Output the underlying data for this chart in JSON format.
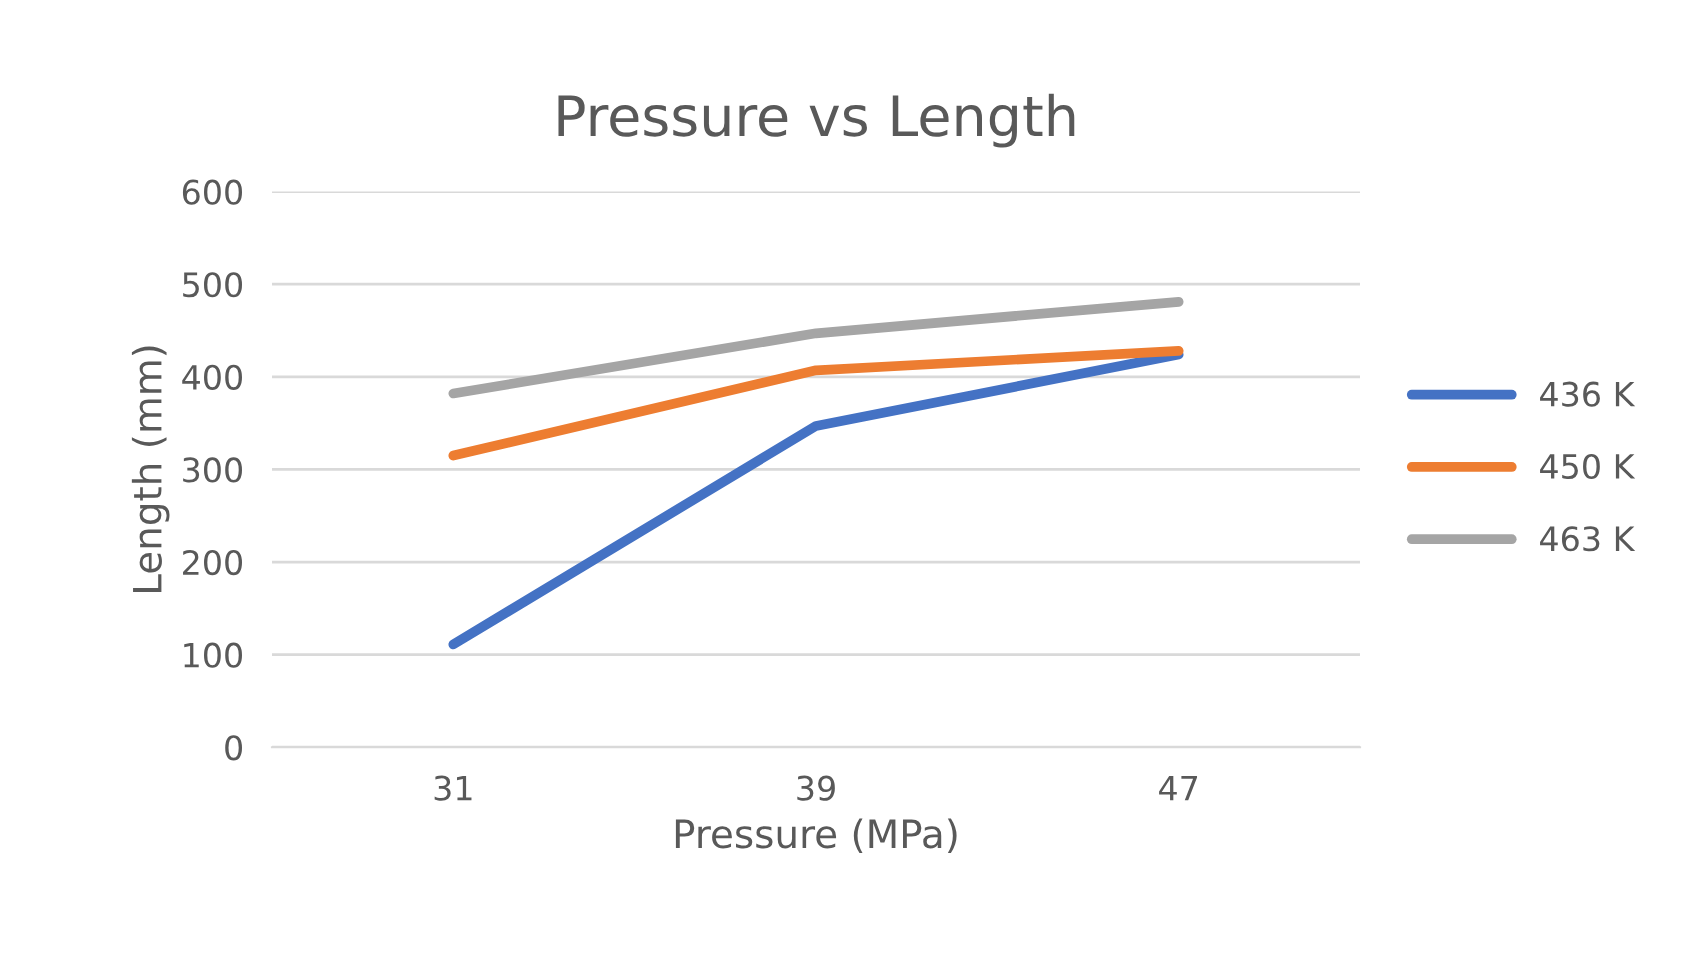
{
  "chart_data": {
    "type": "line",
    "title": "Pressure vs Length",
    "xlabel": "Pressure (MPa)",
    "ylabel": "Length (mm)",
    "categories": [
      "31",
      "39",
      "47"
    ],
    "series": [
      {
        "name": "436 K",
        "color": "#4472c4",
        "values": [
          111,
          347,
          424
        ]
      },
      {
        "name": "450 K",
        "color": "#ed7d31",
        "values": [
          315,
          407,
          428
        ]
      },
      {
        "name": "463 K",
        "color": "#a5a5a5",
        "values": [
          382,
          447,
          481
        ]
      }
    ],
    "ylim": [
      0,
      600
    ],
    "yticks": [
      0,
      100,
      200,
      300,
      400,
      500,
      600
    ],
    "grid": "y",
    "legend": "right",
    "line_style": "solid",
    "marker": "none"
  }
}
